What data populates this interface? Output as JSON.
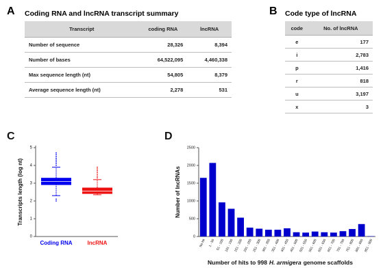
{
  "panel_a": {
    "letter": "A",
    "title": "Coding RNA and lncRNA transcript summary",
    "table": {
      "header": [
        "Transcript",
        "coding RNA",
        "lncRNA"
      ],
      "rows": [
        [
          "Number of sequence",
          "28,326",
          "8,394"
        ],
        [
          "Number of bases",
          "64,522,095",
          "4,460,338"
        ],
        [
          "Max sequence length (nt)",
          "54,805",
          "8,379"
        ],
        [
          "Average sequence length (nt)",
          "2,278",
          "531"
        ]
      ]
    }
  },
  "panel_b": {
    "letter": "B",
    "title": "Code type of lncRNA",
    "table": {
      "header": [
        "code",
        "No. of  lncRNA"
      ],
      "rows": [
        [
          "e",
          "177"
        ],
        [
          "i",
          "2,783"
        ],
        [
          "p",
          "1,416"
        ],
        [
          "r",
          "818"
        ],
        [
          "u",
          "3,197"
        ],
        [
          "x",
          "3"
        ]
      ]
    }
  },
  "chart_data": [
    {
      "type": "box",
      "label": "C",
      "ylabel": "Transcripts length (log nt)",
      "ylim": [
        0,
        5
      ],
      "yticks": [
        0,
        1,
        2,
        3,
        4,
        5
      ],
      "series": [
        {
          "name": "Coding RNA",
          "color": "#0000ee",
          "whisker_low": 2.3,
          "q1": 2.9,
          "median": 3.1,
          "q3": 3.3,
          "whisker_high": 3.9,
          "outliers": [
            4.0,
            4.1,
            4.2,
            4.3,
            4.4,
            4.5,
            4.6,
            4.7,
            2.1,
            2.0
          ]
        },
        {
          "name": "lncRNA",
          "color": "#ee1111",
          "whisker_low": 2.35,
          "q1": 2.4,
          "median": 2.55,
          "q3": 2.75,
          "whisker_high": 3.2,
          "outliers": [
            3.3,
            3.4,
            3.5,
            3.6,
            3.7,
            3.8,
            3.9
          ]
        }
      ]
    },
    {
      "type": "bar",
      "label": "D",
      "ylabel": "Number of lncRNAs",
      "xlabel": [
        "Number of hits to 998",
        "H. armigera",
        "genome scaffolds"
      ],
      "color": "#0000cc",
      "categories": [
        "No hit",
        "1 - 50",
        "51 - 100",
        "101 - 150",
        "151 - 200",
        "201 - 250",
        "251 - 300",
        "301 - 350",
        "351 - 400",
        "401 - 450",
        "451 - 500",
        "501 - 550",
        "551 - 600",
        "601 - 650",
        "651 - 700",
        "701 - 750",
        "751 - 800",
        "801 - 850",
        "851 - 900"
      ],
      "values": [
        1650,
        2070,
        960,
        780,
        530,
        250,
        220,
        190,
        190,
        230,
        120,
        110,
        140,
        120,
        110,
        150,
        210,
        350,
        10
      ],
      "ylim": [
        0,
        2500
      ],
      "yticks": [
        0,
        500,
        1000,
        1500,
        2000,
        2500
      ]
    }
  ]
}
